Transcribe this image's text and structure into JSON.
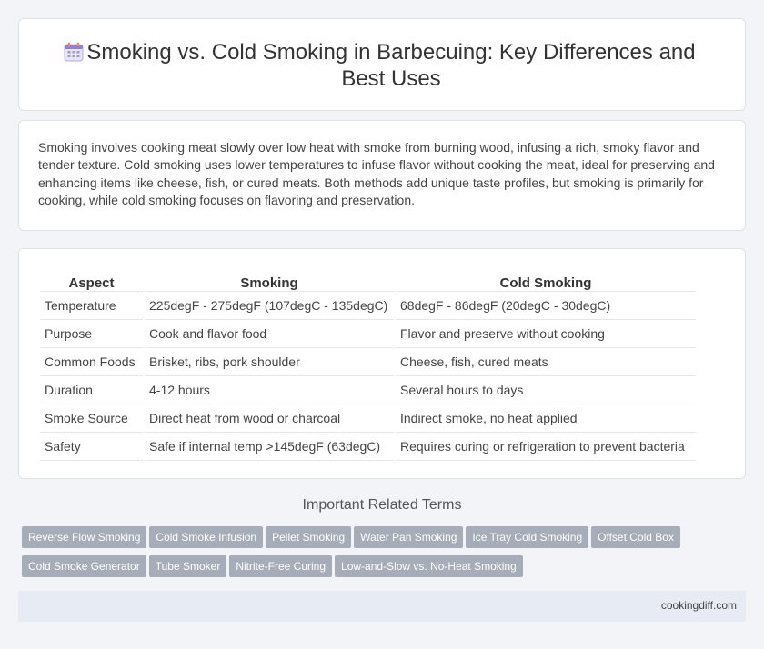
{
  "header": {
    "icon": "calendar-icon",
    "title": "Smoking vs. Cold Smoking in Barbecuing: Key Differences and Best Uses"
  },
  "intro": "Smoking involves cooking meat slowly over low heat with smoke from burning wood, infusing a rich, smoky flavor and tender texture. Cold smoking uses lower temperatures to infuse flavor without cooking the meat, ideal for preserving and enhancing items like cheese, fish, or cured meats. Both methods add unique taste profiles, but smoking is primarily for cooking, while cold smoking focuses on flavoring and preservation.",
  "table": {
    "headers": [
      "Aspect",
      "Smoking",
      "Cold Smoking"
    ],
    "rows": [
      [
        "Temperature",
        "225degF - 275degF (107degC - 135degC)",
        "68degF - 86degF (20degC - 30degC)"
      ],
      [
        "Purpose",
        "Cook and flavor food",
        "Flavor and preserve without cooking"
      ],
      [
        "Common Foods",
        "Brisket, ribs, pork shoulder",
        "Cheese, fish, cured meats"
      ],
      [
        "Duration",
        "4-12 hours",
        "Several hours to days"
      ],
      [
        "Smoke Source",
        "Direct heat from wood or charcoal",
        "Indirect smoke, no heat applied"
      ],
      [
        "Safety",
        "Safe if internal temp >145degF (63degC)",
        "Requires curing or refrigeration to prevent bacteria"
      ]
    ]
  },
  "related": {
    "title": "Important Related Terms",
    "tags": [
      "Reverse Flow Smoking",
      "Cold Smoke Infusion",
      "Pellet Smoking",
      "Water Pan Smoking",
      "Ice Tray Cold Smoking",
      "Offset Cold Box",
      "Cold Smoke Generator",
      "Tube Smoker",
      "Nitrite-Free Curing",
      "Low-and-Slow vs. No-Heat Smoking"
    ]
  },
  "footer": {
    "site": "cookingdiff.com"
  },
  "colors": {
    "tag_bg": "#a7adb8",
    "footer_bg": "#e6ebf4",
    "page_bg": "#f2f4f8"
  }
}
